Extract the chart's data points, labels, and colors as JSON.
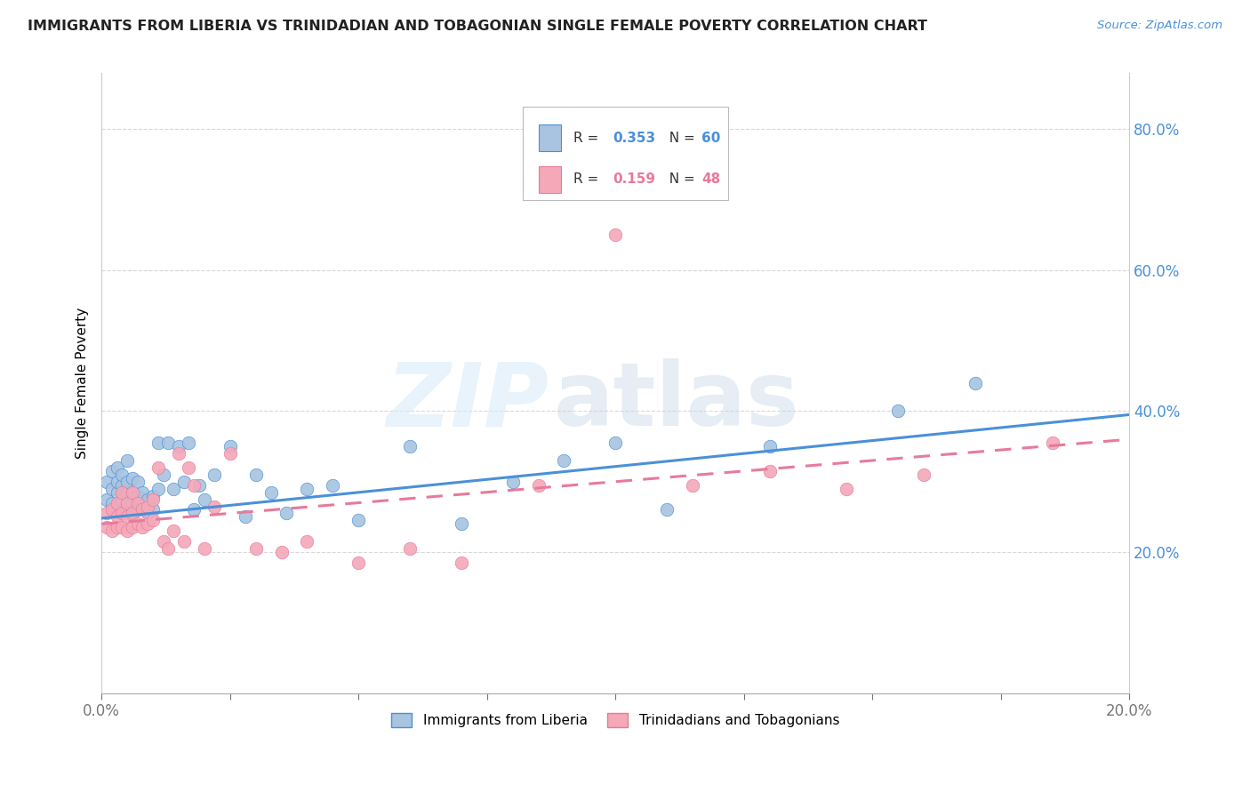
{
  "title": "IMMIGRANTS FROM LIBERIA VS TRINIDADIAN AND TOBAGONIAN SINGLE FEMALE POVERTY CORRELATION CHART",
  "source": "Source: ZipAtlas.com",
  "ylabel": "Single Female Poverty",
  "ylabel_ticks": [
    "20.0%",
    "40.0%",
    "60.0%",
    "80.0%"
  ],
  "ylabel_tick_vals": [
    0.2,
    0.4,
    0.6,
    0.8
  ],
  "xlim": [
    0.0,
    0.2
  ],
  "ylim": [
    0.0,
    0.88
  ],
  "legend1_r": "0.353",
  "legend1_n": "60",
  "legend2_r": "0.159",
  "legend2_n": "48",
  "color_blue": "#a8c4e0",
  "color_pink": "#f4a8b8",
  "line_blue": "#4a90d9",
  "line_pink": "#e87a9a",
  "watermark_zip": "ZIP",
  "watermark_atlas": "atlas",
  "blue_scatter_x": [
    0.001,
    0.001,
    0.002,
    0.002,
    0.002,
    0.003,
    0.003,
    0.003,
    0.003,
    0.004,
    0.004,
    0.004,
    0.004,
    0.005,
    0.005,
    0.005,
    0.005,
    0.005,
    0.006,
    0.006,
    0.006,
    0.006,
    0.007,
    0.007,
    0.007,
    0.008,
    0.008,
    0.009,
    0.009,
    0.01,
    0.01,
    0.011,
    0.011,
    0.012,
    0.013,
    0.014,
    0.015,
    0.016,
    0.017,
    0.018,
    0.019,
    0.02,
    0.022,
    0.025,
    0.028,
    0.03,
    0.033,
    0.036,
    0.04,
    0.045,
    0.05,
    0.06,
    0.07,
    0.08,
    0.09,
    0.1,
    0.11,
    0.13,
    0.155,
    0.17
  ],
  "blue_scatter_y": [
    0.275,
    0.3,
    0.27,
    0.29,
    0.315,
    0.265,
    0.285,
    0.3,
    0.32,
    0.26,
    0.275,
    0.295,
    0.31,
    0.255,
    0.27,
    0.285,
    0.3,
    0.33,
    0.255,
    0.27,
    0.285,
    0.305,
    0.26,
    0.28,
    0.3,
    0.265,
    0.285,
    0.255,
    0.275,
    0.26,
    0.28,
    0.29,
    0.355,
    0.31,
    0.355,
    0.29,
    0.35,
    0.3,
    0.355,
    0.26,
    0.295,
    0.275,
    0.31,
    0.35,
    0.25,
    0.31,
    0.285,
    0.255,
    0.29,
    0.295,
    0.245,
    0.35,
    0.24,
    0.3,
    0.33,
    0.355,
    0.26,
    0.35,
    0.4,
    0.44
  ],
  "pink_scatter_x": [
    0.001,
    0.001,
    0.002,
    0.002,
    0.003,
    0.003,
    0.003,
    0.004,
    0.004,
    0.004,
    0.005,
    0.005,
    0.005,
    0.006,
    0.006,
    0.006,
    0.007,
    0.007,
    0.008,
    0.008,
    0.009,
    0.009,
    0.01,
    0.01,
    0.011,
    0.012,
    0.013,
    0.014,
    0.015,
    0.016,
    0.017,
    0.018,
    0.02,
    0.022,
    0.025,
    0.03,
    0.035,
    0.04,
    0.05,
    0.06,
    0.07,
    0.085,
    0.1,
    0.115,
    0.13,
    0.145,
    0.16,
    0.185
  ],
  "pink_scatter_y": [
    0.235,
    0.255,
    0.23,
    0.26,
    0.235,
    0.25,
    0.27,
    0.235,
    0.255,
    0.285,
    0.23,
    0.25,
    0.27,
    0.235,
    0.255,
    0.285,
    0.24,
    0.27,
    0.235,
    0.26,
    0.24,
    0.265,
    0.245,
    0.275,
    0.32,
    0.215,
    0.205,
    0.23,
    0.34,
    0.215,
    0.32,
    0.295,
    0.205,
    0.265,
    0.34,
    0.205,
    0.2,
    0.215,
    0.185,
    0.205,
    0.185,
    0.295,
    0.65,
    0.295,
    0.315,
    0.29,
    0.31,
    0.355
  ],
  "trend_blue_x0": 0.0,
  "trend_blue_y0": 0.248,
  "trend_blue_x1": 0.2,
  "trend_blue_y1": 0.395,
  "trend_pink_x0": 0.0,
  "trend_pink_y0": 0.24,
  "trend_pink_x1": 0.2,
  "trend_pink_y1": 0.36
}
